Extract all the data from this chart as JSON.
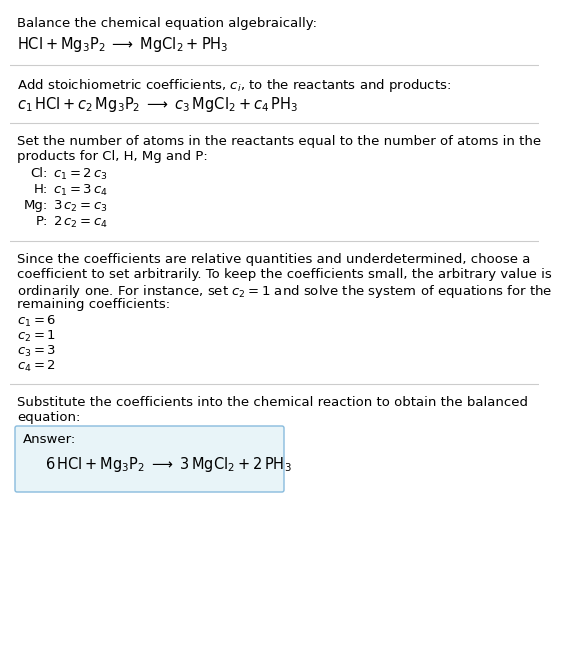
{
  "bg_color": "#ffffff",
  "text_color": "#000000",
  "line_color": "#cccccc",
  "answer_box_color": "#e8f4f8",
  "answer_box_border": "#88bbdd",
  "section1_title": "Balance the chemical equation algebraically:",
  "section2_title": "Add stoichiometric coefficients, $c_i$, to the reactants and products:",
  "section3_title_l1": "Set the number of atoms in the reactants equal to the number of atoms in the",
  "section3_title_l2": "products for Cl, H, Mg and P:",
  "section4_title_l1": "Since the coefficients are relative quantities and underdetermined, choose a",
  "section4_title_l2": "coefficient to set arbitrarily. To keep the coefficients small, the arbitrary value is",
  "section4_title_l3": "ordinarily one. For instance, set $c_2 = 1$ and solve the system of equations for the",
  "section4_title_l4": "remaining coefficients:",
  "section5_title_l1": "Substitute the coefficients into the chemical reaction to obtain the balanced",
  "section5_title_l2": "equation:",
  "answer_label": "Answer:",
  "fs_body": 9.5,
  "fs_eq": 10.5,
  "lmargin": 0.013,
  "eq_indent": 0.04
}
